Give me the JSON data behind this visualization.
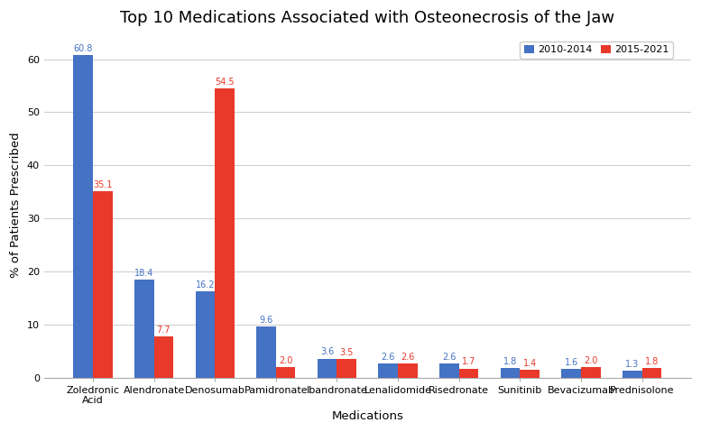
{
  "title": "Top 10 Medications Associated with Osteonecrosis of the Jaw",
  "xlabel": "Medications",
  "ylabel": "% of Patients Prescribed",
  "categories": [
    "Zoledronic\nAcid",
    "Alendronate",
    "Denosumab",
    "Pamidronate",
    "Ibandronate",
    "Lenalidomide",
    "Risedronate",
    "Sunitinib",
    "Bevacizumab",
    "Prednisolone"
  ],
  "values_2010_2014": [
    60.8,
    18.4,
    16.2,
    9.6,
    3.6,
    2.6,
    2.6,
    1.8,
    1.6,
    1.3
  ],
  "values_2015_2021": [
    35.1,
    7.7,
    54.5,
    2.0,
    3.5,
    2.6,
    1.7,
    1.4,
    2.0,
    1.8
  ],
  "color_2010_2014": "#4472C4",
  "color_2015_2021": "#E8392A",
  "legend_labels": [
    "2010-2014",
    "2015-2021"
  ],
  "ylim": [
    0,
    65
  ],
  "yticks": [
    0,
    10,
    20,
    30,
    40,
    50,
    60
  ],
  "bar_width": 0.32,
  "title_fontsize": 13,
  "axis_label_fontsize": 9.5,
  "tick_fontsize": 8,
  "value_fontsize": 7,
  "background_color": "#ffffff",
  "grid_color": "#d0d0d0"
}
